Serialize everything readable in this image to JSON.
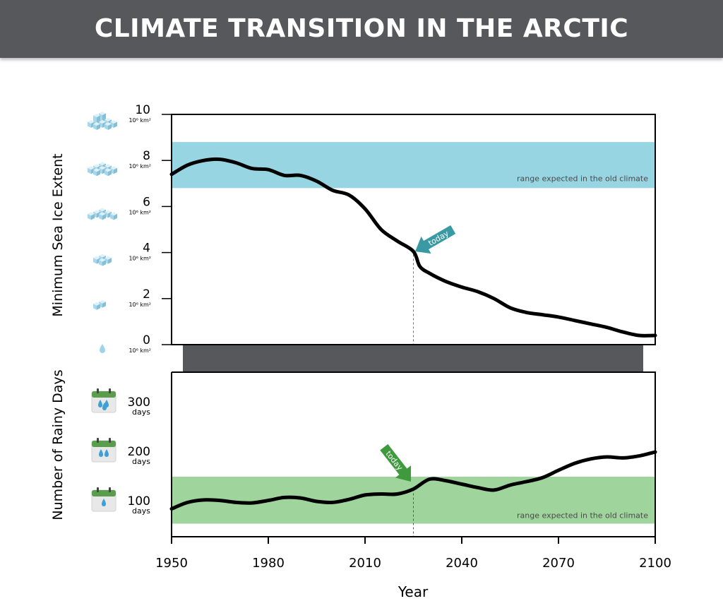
{
  "header": {
    "title": "CLIMATE TRANSITION IN THE ARCTIC"
  },
  "colors": {
    "banner": "#57585b",
    "ice_band": "#97d5e3",
    "rain_band": "#9fd49c",
    "connector": "#57585b",
    "today_ice_arrow": "#3a9aa3",
    "today_rain_arrow": "#3e9a3c",
    "line": "#000000"
  },
  "chart_data": [
    {
      "type": "line",
      "panel": "top",
      "ylabel": "Minimum Sea Ice Extent",
      "xlim": [
        1950,
        2100
      ],
      "ylim": [
        0,
        10
      ],
      "y_ticks": [
        {
          "value": 0,
          "label": "0",
          "unit": "10⁶ km²",
          "icon": "water-drop-icon"
        },
        {
          "value": 2,
          "label": "2",
          "unit": "10⁶ km²",
          "icon": "ice-cubes-icon"
        },
        {
          "value": 4,
          "label": "4",
          "unit": "10⁶ km²",
          "icon": "ice-cubes-icon"
        },
        {
          "value": 6,
          "label": "6",
          "unit": "10⁶ km²",
          "icon": "ice-cubes-icon"
        },
        {
          "value": 8,
          "label": "8",
          "unit": "10⁶ km²",
          "icon": "ice-cubes-icon"
        },
        {
          "value": 10,
          "label": "10",
          "unit": "10⁶ km²",
          "icon": "ice-cubes-icon"
        }
      ],
      "band": {
        "from": 6.8,
        "to": 8.8,
        "label": "range expected in the old climate"
      },
      "today": {
        "x": 2025,
        "label": "today"
      },
      "series": [
        {
          "x": [
            1950,
            1955,
            1960,
            1965,
            1970,
            1975,
            1980,
            1985,
            1990,
            1995,
            2000,
            2005,
            2010,
            2015,
            2020,
            2025,
            2027,
            2030,
            2035,
            2040,
            2045,
            2050,
            2055,
            2060,
            2065,
            2070,
            2075,
            2080,
            2085,
            2090,
            2095,
            2100
          ],
          "y": [
            7.4,
            7.8,
            8.0,
            8.05,
            7.9,
            7.65,
            7.6,
            7.35,
            7.35,
            7.1,
            6.7,
            6.5,
            5.9,
            5.0,
            4.5,
            4.05,
            3.4,
            3.1,
            2.75,
            2.5,
            2.3,
            2.0,
            1.6,
            1.4,
            1.3,
            1.2,
            1.05,
            0.9,
            0.75,
            0.55,
            0.4,
            0.4
          ]
        }
      ]
    },
    {
      "type": "line",
      "panel": "bottom",
      "ylabel": "Number of Rainy Days",
      "xlabel": "Year",
      "xlim": [
        1950,
        2100
      ],
      "ylim": [
        40,
        360
      ],
      "x_ticks": [
        1950,
        1980,
        2010,
        2040,
        2070,
        2100
      ],
      "y_ticks": [
        {
          "value": 100,
          "label": "100",
          "unit": "days",
          "icon": "calendar-rain-icon"
        },
        {
          "value": 200,
          "label": "200",
          "unit": "days",
          "icon": "calendar-rain-icon"
        },
        {
          "value": 300,
          "label": "300",
          "unit": "days",
          "icon": "calendar-rain-icon"
        }
      ],
      "band": {
        "from": 55,
        "to": 150,
        "label": "range expected in the old climate"
      },
      "today": {
        "x": 2025,
        "label": "today"
      },
      "series": [
        {
          "x": [
            1950,
            1955,
            1960,
            1965,
            1970,
            1975,
            1980,
            1985,
            1990,
            1995,
            2000,
            2005,
            2010,
            2015,
            2020,
            2025,
            2030,
            2035,
            2040,
            2045,
            2050,
            2055,
            2060,
            2065,
            2070,
            2075,
            2080,
            2085,
            2090,
            2095,
            2100
          ],
          "y": [
            85,
            98,
            103,
            102,
            98,
            97,
            102,
            108,
            107,
            100,
            98,
            104,
            113,
            115,
            115,
            125,
            145,
            142,
            135,
            128,
            123,
            133,
            140,
            148,
            163,
            177,
            186,
            190,
            188,
            192,
            200
          ]
        }
      ]
    }
  ]
}
